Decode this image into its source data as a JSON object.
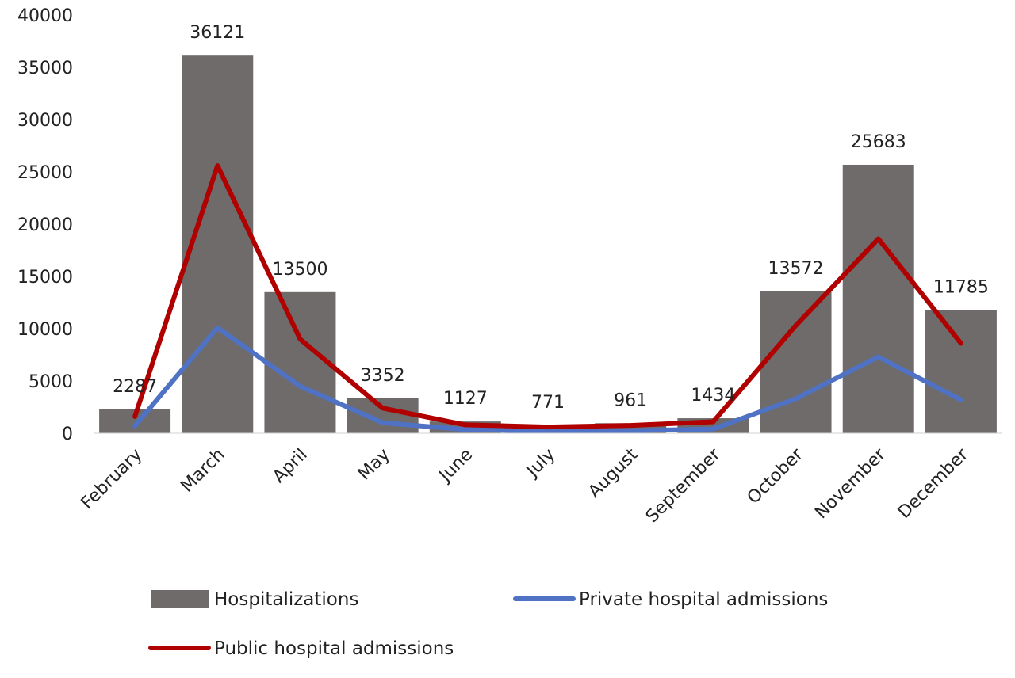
{
  "chart_data": {
    "type": "bar",
    "title": "",
    "xlabel": "",
    "ylabel": "",
    "ylim": [
      0,
      40000
    ],
    "yticks": [
      0,
      5000,
      10000,
      15000,
      20000,
      25000,
      30000,
      35000,
      40000
    ],
    "grid": false,
    "legend_position": "bottom",
    "categories": [
      "February",
      "March",
      "April",
      "May",
      "June",
      "July",
      "August",
      "September",
      "October",
      "November",
      "December"
    ],
    "series": [
      {
        "name": "Hospitalizations",
        "type": "bar",
        "color": "#6f6b6b",
        "values": [
          2287,
          36121,
          13500,
          3352,
          1127,
          771,
          961,
          1434,
          13572,
          25683,
          11785
        ],
        "data_labels": [
          "2287",
          "36121",
          "13500",
          "3352",
          "1127",
          "771",
          "961",
          "1434",
          "13572",
          "25683",
          "11785"
        ]
      },
      {
        "name": "Private hospital admissions",
        "type": "line",
        "color": "#4f72c4",
        "values": [
          700,
          10100,
          4500,
          1000,
          350,
          200,
          250,
          400,
          3300,
          7300,
          3200
        ]
      },
      {
        "name": "Public hospital admissions",
        "type": "line",
        "color": "#b00000",
        "values": [
          1600,
          25600,
          9000,
          2400,
          800,
          600,
          750,
          1100,
          10300,
          18600,
          8600
        ]
      }
    ],
    "legend": [
      {
        "name": "Hospitalizations",
        "symbol": "bar"
      },
      {
        "name": "Private hospital admissions",
        "symbol": "line"
      },
      {
        "name": "Public hospital admissions",
        "symbol": "line"
      }
    ]
  }
}
